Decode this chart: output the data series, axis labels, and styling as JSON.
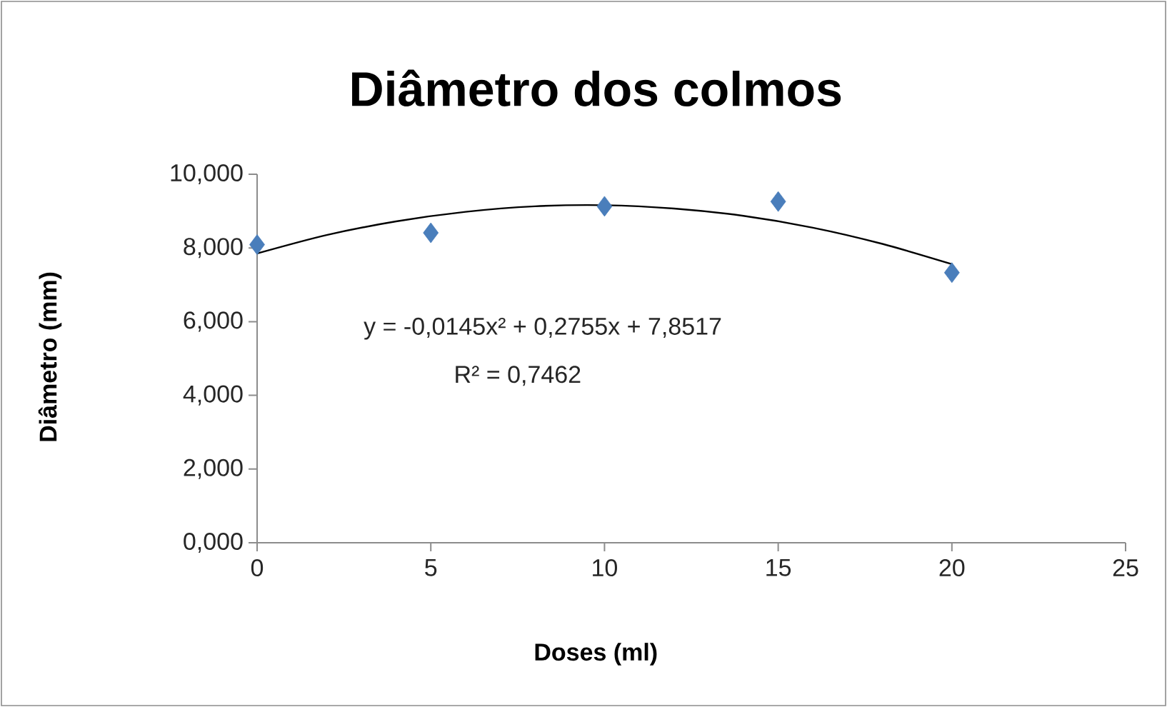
{
  "chart_data": {
    "type": "scatter",
    "title": "Diâmetro dos colmos",
    "xlabel": "Doses (ml)",
    "ylabel": "Diâmetro (mm)",
    "xlim": [
      0,
      25
    ],
    "xticks": [
      0,
      5,
      10,
      15,
      20,
      25
    ],
    "ylim": [
      0,
      10
    ],
    "yticks": [
      {
        "value": 0,
        "label": "0,000"
      },
      {
        "value": 2,
        "label": "2,000"
      },
      {
        "value": 4,
        "label": "4,000"
      },
      {
        "value": 6,
        "label": "6,000"
      },
      {
        "value": 8,
        "label": "8,000"
      },
      {
        "value": 10,
        "label": "10,000"
      }
    ],
    "series": [
      {
        "color": "#4a7ebb",
        "marker": "diamond",
        "x": [
          0,
          5,
          10,
          15,
          20
        ],
        "values": [
          8.09,
          8.41,
          9.13,
          9.26,
          7.33
        ]
      },
      {
        "type": "line",
        "color": "#000000",
        "marker": "none",
        "line_style": "solid",
        "x": [
          0,
          2,
          4,
          6,
          8,
          10,
          12,
          14,
          16,
          18,
          20
        ],
        "values": [
          7.85,
          8.35,
          8.72,
          8.98,
          9.13,
          9.16,
          9.07,
          8.87,
          8.55,
          8.11,
          7.56
        ]
      }
    ],
    "annotations": [
      "y = -0,0145x² + 0,2755x + 7,8517",
      "R² = 0,7462"
    ],
    "grid": false,
    "legend": false
  }
}
